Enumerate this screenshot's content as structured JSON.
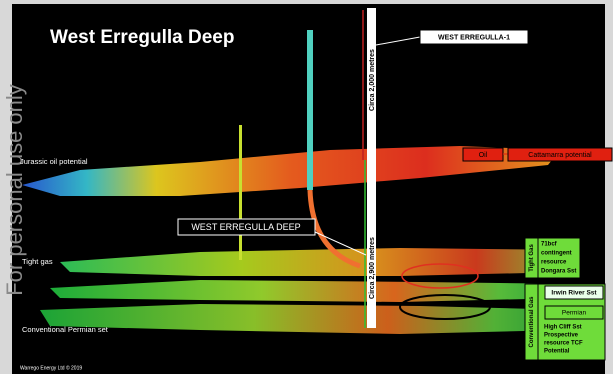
{
  "watermark": "For personal use only",
  "header": {
    "title": "West Erregulla Deep"
  },
  "wells": [
    {
      "label": "WEST ERREGULLA-1"
    },
    {
      "label": "WEST ERREGULLA DEEP"
    }
  ],
  "depths": [
    "Circa 2,000 metres",
    "Circa 2,900 metres"
  ],
  "layers": [
    "Jurassic oil potential",
    "Tight gas",
    "Conventional Permian set"
  ],
  "callouts": {
    "oil": "Oil",
    "cattamarra": "Cattamarra potential",
    "tight_gas": {
      "tag": "Tight Gas",
      "lines": [
        "71bcf",
        "contingent",
        "resource",
        "Dongara Sst"
      ]
    },
    "irwin": "Irwin River Sst",
    "permian": "Permian",
    "conventional_gas": {
      "tag": "Conventional Gas",
      "lines": [
        "High Cliff Sst",
        "Prospective",
        "resource TCF",
        "Potential"
      ]
    }
  },
  "footer": "Warrego Energy Ltd © 2019"
}
